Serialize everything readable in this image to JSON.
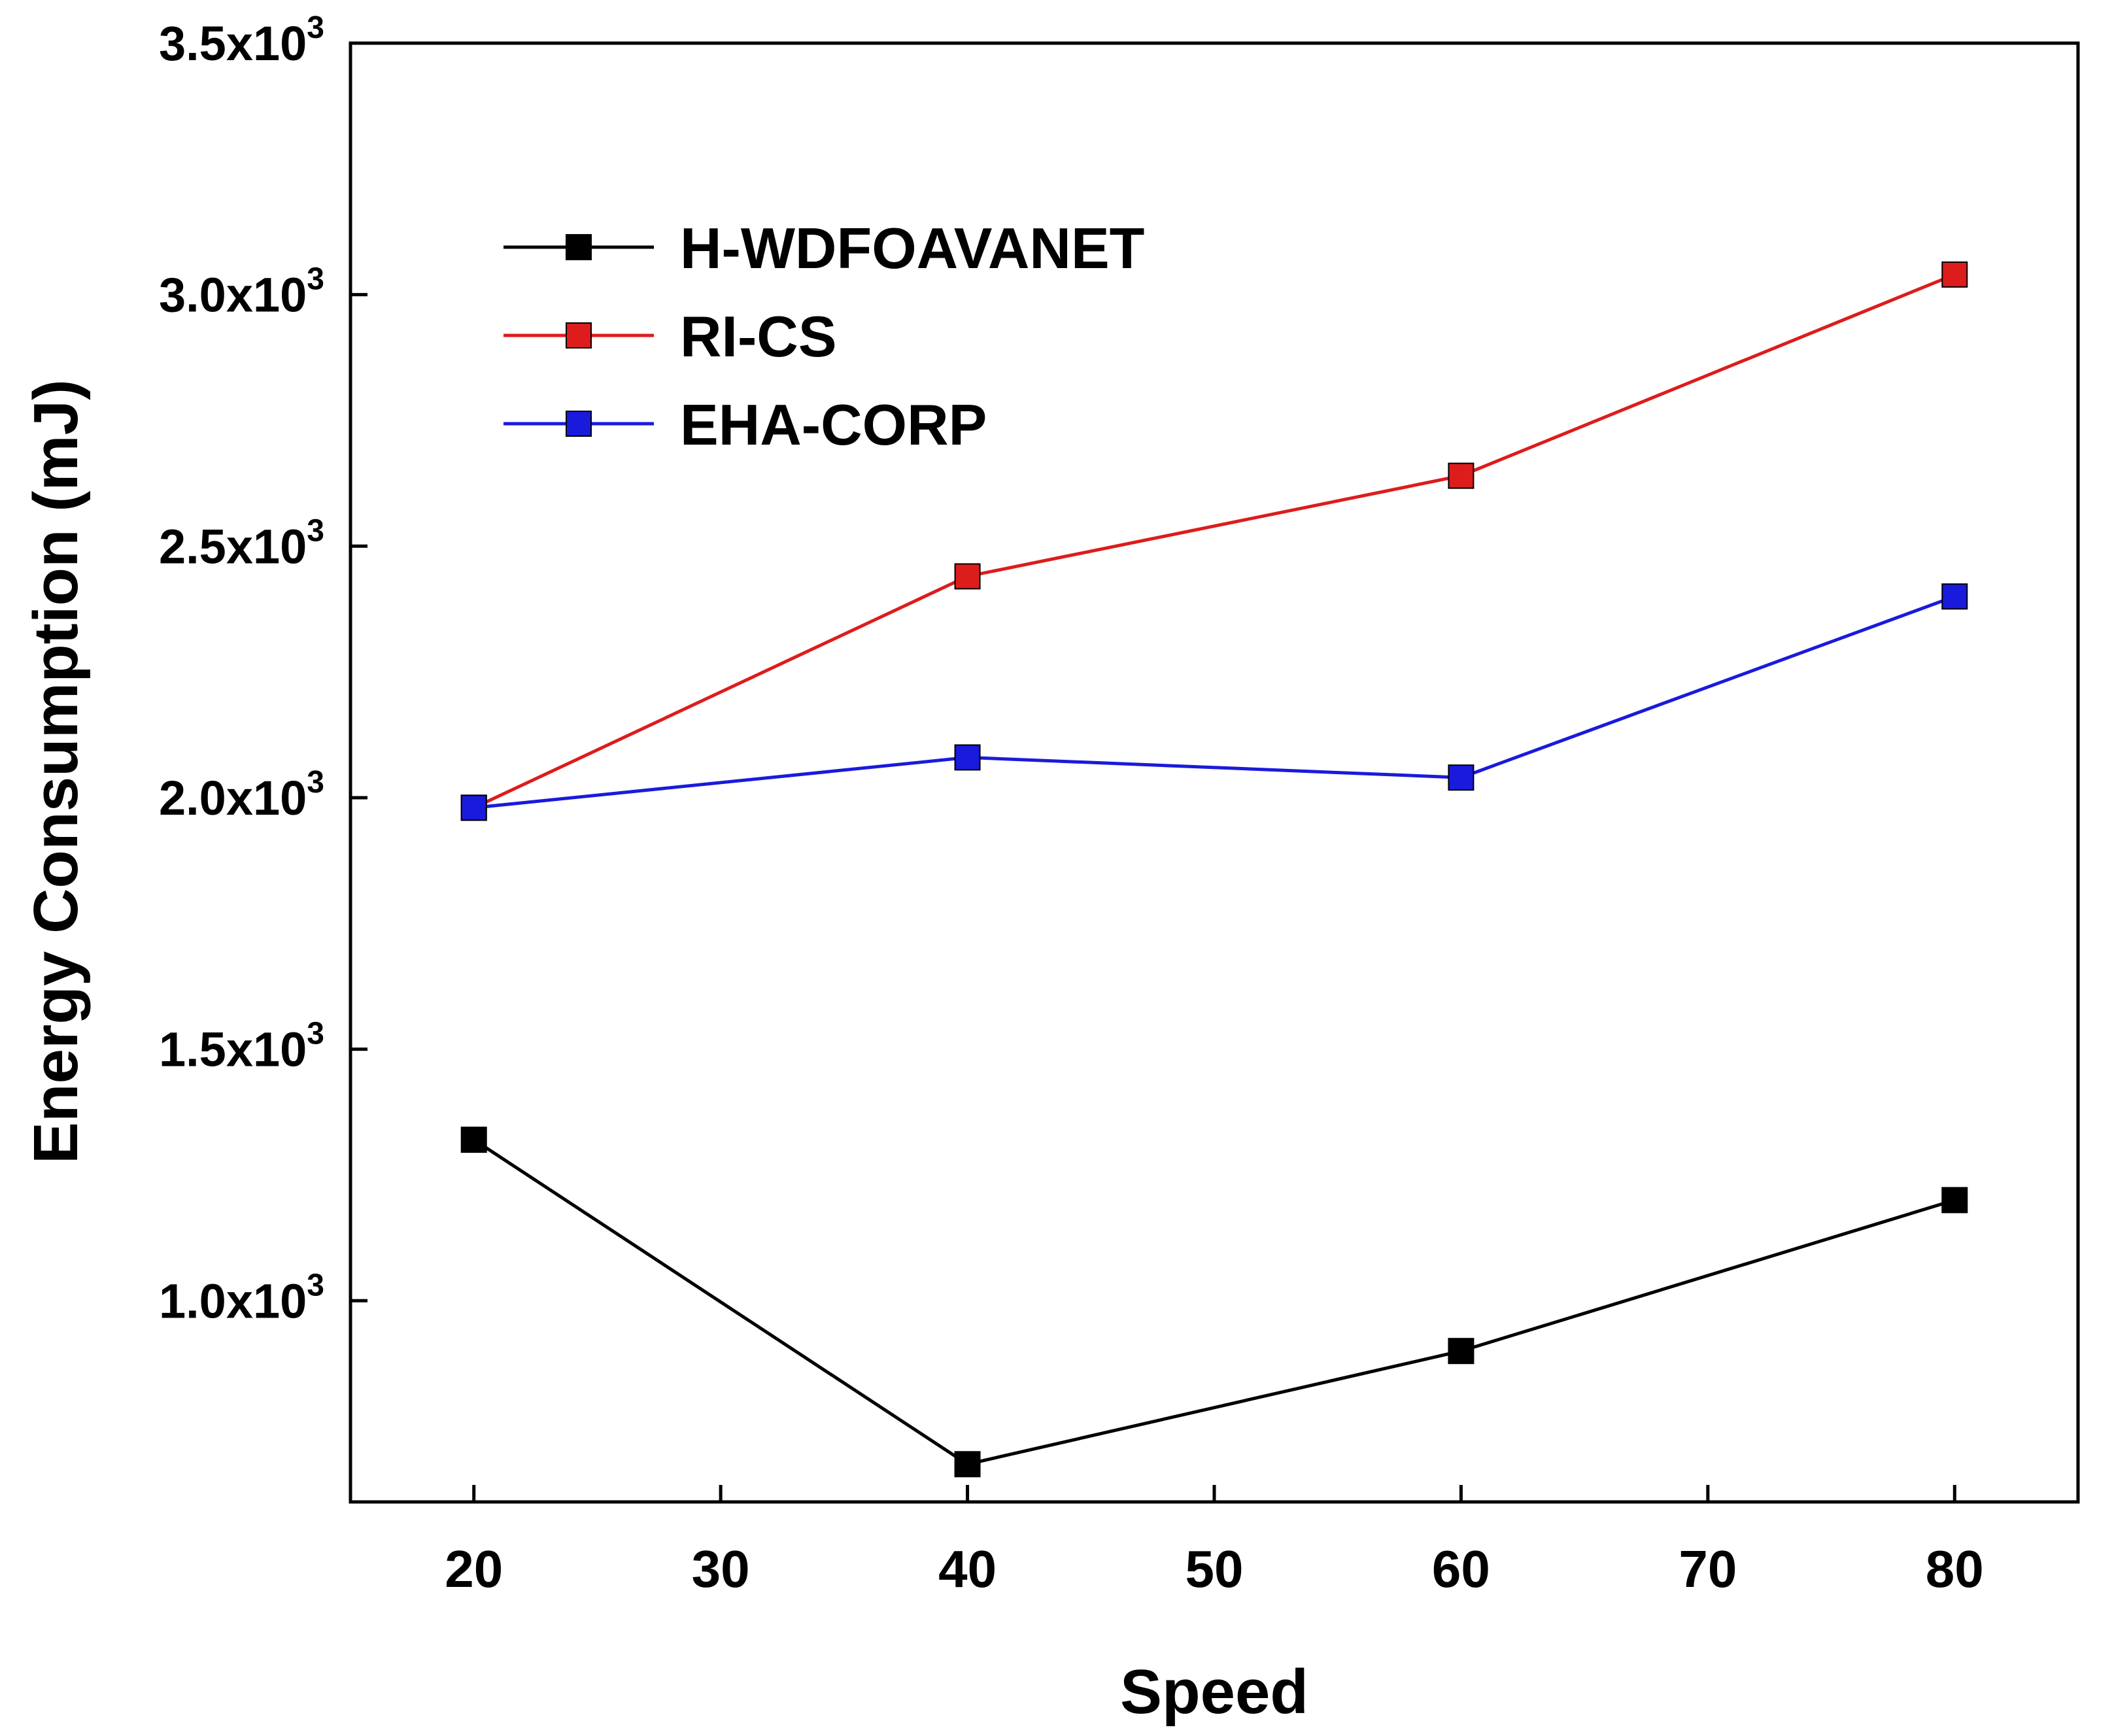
{
  "chart_data": {
    "type": "line",
    "title": "",
    "xlabel": "Speed",
    "ylabel": "Energy Consumption (mJ)",
    "x": [
      20,
      40,
      60,
      80
    ],
    "xlim": [
      15,
      85
    ],
    "ylim": [
      600,
      3500
    ],
    "xticks": [
      20,
      30,
      40,
      50,
      60,
      70,
      80
    ],
    "yticks": [
      {
        "value": 1000,
        "mantissa": "1.0x10",
        "exp": "3"
      },
      {
        "value": 1500,
        "mantissa": "1.5x10",
        "exp": "3"
      },
      {
        "value": 2000,
        "mantissa": "2.0x10",
        "exp": "3"
      },
      {
        "value": 2500,
        "mantissa": "2.5x10",
        "exp": "3"
      },
      {
        "value": 3000,
        "mantissa": "3.0x10",
        "exp": "3"
      },
      {
        "value": 3500,
        "mantissa": "3.5x10",
        "exp": "3"
      }
    ],
    "legend_position": "upper-left",
    "series": [
      {
        "name": "H-WDFOAVANET",
        "color": "#000000",
        "marker": "square",
        "values": [
          1320,
          675,
          900,
          1200
        ]
      },
      {
        "name": "RI-CS",
        "color": "#dd1c1c",
        "marker": "square",
        "values": [
          1980,
          2440,
          2640,
          3040
        ]
      },
      {
        "name": "EHA-CORP",
        "color": "#1a1adc",
        "marker": "square",
        "values": [
          1980,
          2080,
          2040,
          2400
        ]
      }
    ]
  }
}
